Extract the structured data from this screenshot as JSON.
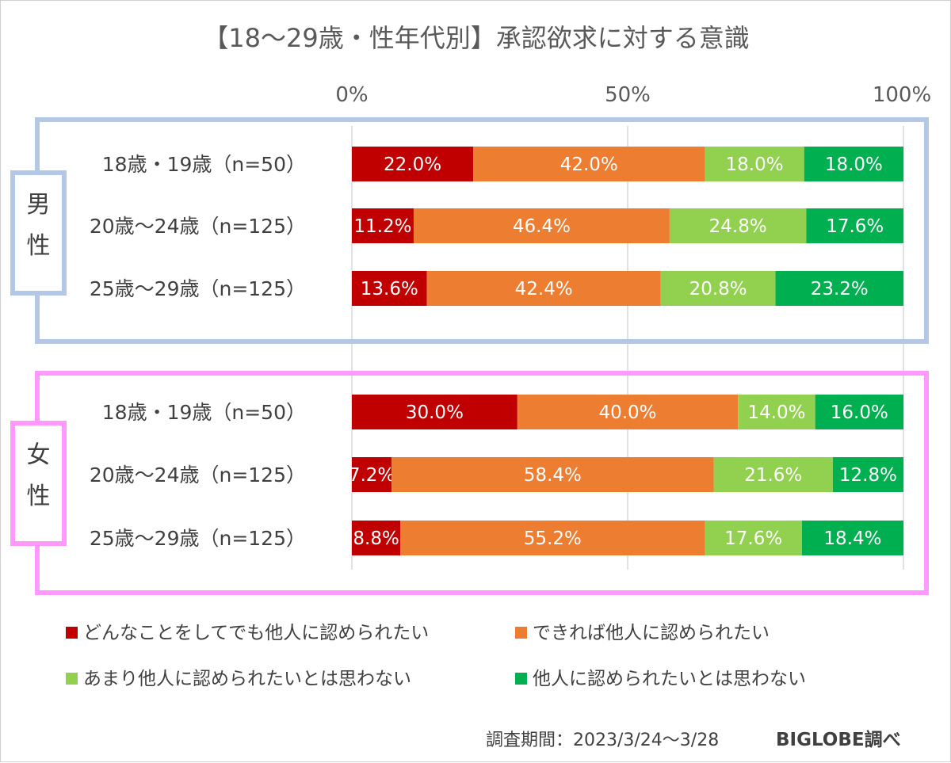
{
  "colors": {
    "seg1": "#c00000",
    "seg2": "#ed7d31",
    "seg3": "#92d050",
    "seg4": "#00b050",
    "male_frame": "#b4c7e7",
    "female_frame": "#ff99ff",
    "grid": "#d9d9d9"
  },
  "chart_data": {
    "type": "bar",
    "orientation": "horizontal-stacked-100",
    "title": "【18〜29歳・性年代別】承認欲求に対する意識",
    "x_ticks": [
      "0%",
      "50%",
      "100%"
    ],
    "xlim": [
      0,
      100
    ],
    "legend_placement": "bottom",
    "legend": [
      "どんなことをしてでも他人に認められたい",
      "できれば他人に認められたい",
      "あまり他人に認められたいとは思わない",
      "他人に認められたいとは思わない"
    ],
    "groups": [
      {
        "label": "男性",
        "rows": [
          {
            "category": "18歳・19歳（n=50）",
            "values": [
              22.0,
              42.0,
              18.0,
              18.0
            ],
            "labels": [
              "22.0%",
              "42.0%",
              "18.0%",
              "18.0%"
            ]
          },
          {
            "category": "20歳〜24歳（n=125）",
            "values": [
              11.2,
              46.4,
              24.8,
              17.6
            ],
            "labels": [
              "11.2%",
              "46.4%",
              "24.8%",
              "17.6%"
            ]
          },
          {
            "category": "25歳〜29歳（n=125）",
            "values": [
              13.6,
              42.4,
              20.8,
              23.2
            ],
            "labels": [
              "13.6%",
              "42.4%",
              "20.8%",
              "23.2%"
            ]
          }
        ]
      },
      {
        "label": "女性",
        "rows": [
          {
            "category": "18歳・19歳（n=50）",
            "values": [
              30.0,
              40.0,
              14.0,
              16.0
            ],
            "labels": [
              "30.0%",
              "40.0%",
              "14.0%",
              "16.0%"
            ]
          },
          {
            "category": "20歳〜24歳（n=125）",
            "values": [
              7.2,
              58.4,
              21.6,
              12.8
            ],
            "labels": [
              "7.2%",
              "58.4%",
              "21.6%",
              "12.8%"
            ]
          },
          {
            "category": "25歳〜29歳（n=125）",
            "values": [
              8.8,
              55.2,
              17.6,
              18.4
            ],
            "labels": [
              "8.8%",
              "55.2%",
              "17.6%",
              "18.4%"
            ]
          }
        ]
      }
    ]
  },
  "footer": {
    "survey_period": "調査期間：2023/3/24〜3/28",
    "brand": "BIGLOBE調べ"
  }
}
